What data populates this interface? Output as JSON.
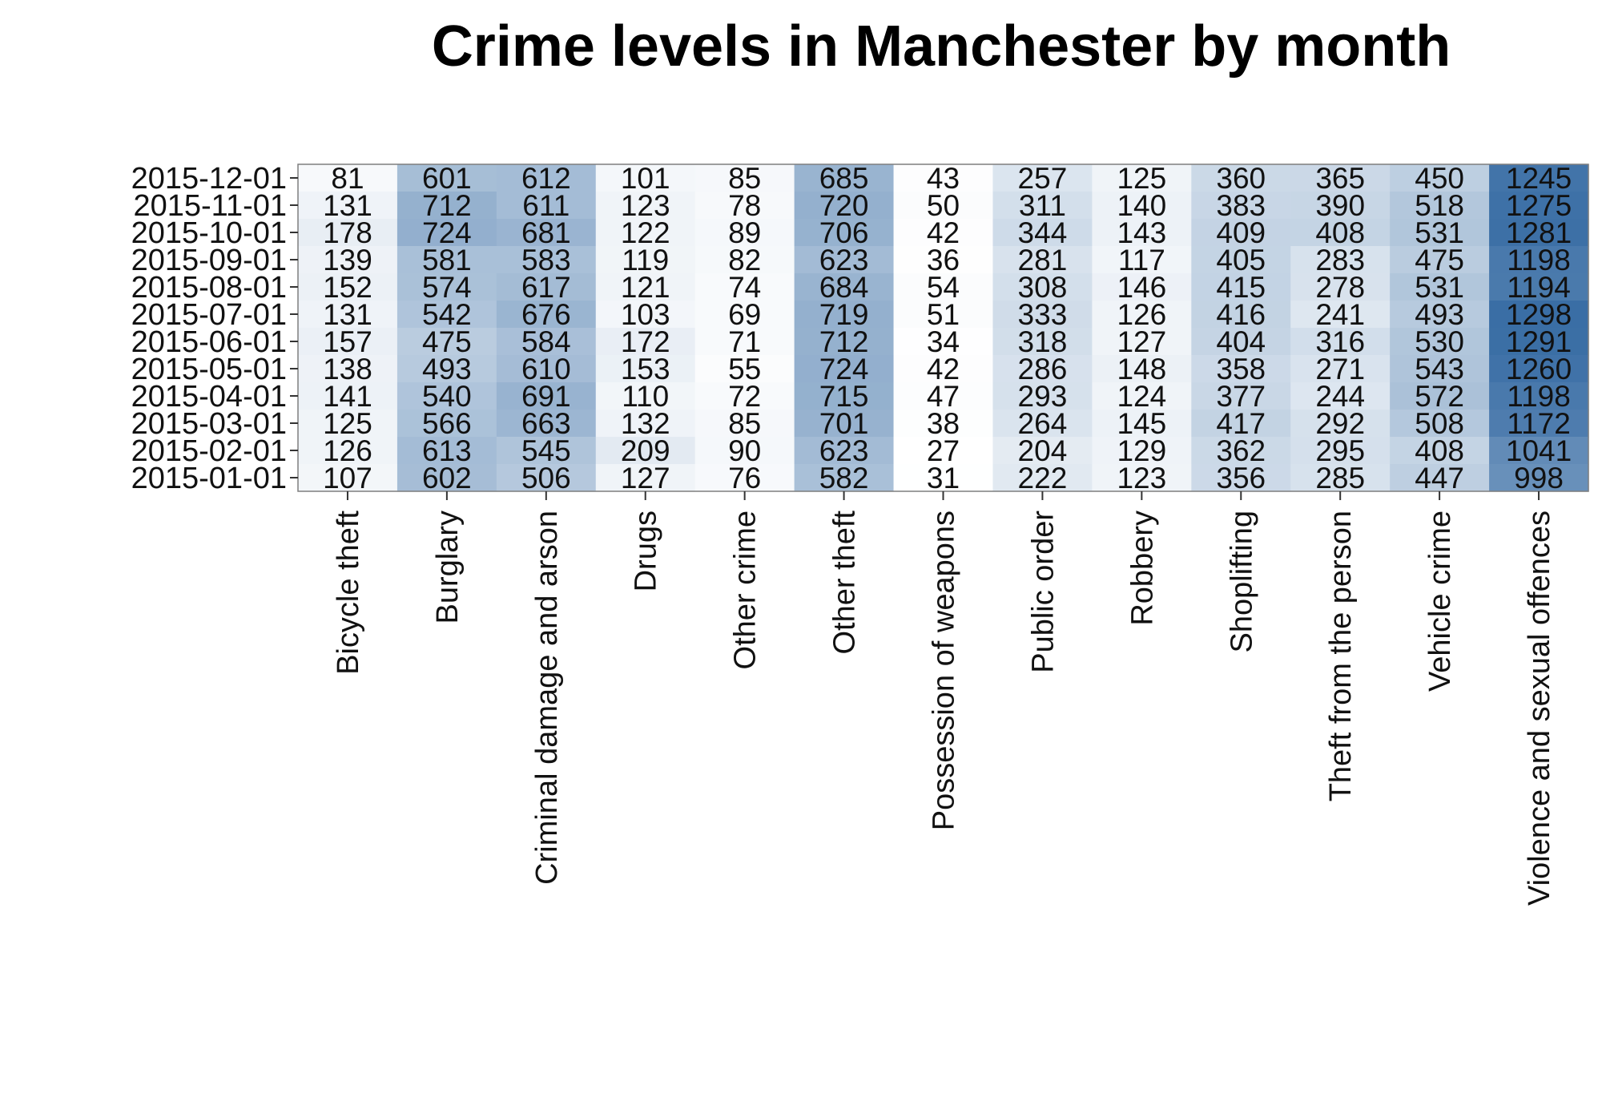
{
  "chart_data": {
    "type": "heatmap",
    "title": "Crime levels in Manchester by month",
    "xlabel": "",
    "ylabel": "",
    "x_categories": [
      "Bicycle theft",
      "Burglary",
      "Criminal damage and arson",
      "Drugs",
      "Other crime",
      "Other theft",
      "Possession of weapons",
      "Public order",
      "Robbery",
      "Shoplifting",
      "Theft from the person",
      "Vehicle crime",
      "Violence and sexual offences"
    ],
    "y_categories": [
      "2015-12-01",
      "2015-11-01",
      "2015-10-01",
      "2015-09-01",
      "2015-08-01",
      "2015-07-01",
      "2015-06-01",
      "2015-05-01",
      "2015-04-01",
      "2015-03-01",
      "2015-02-01",
      "2015-01-01"
    ],
    "values": [
      [
        81,
        601,
        612,
        101,
        85,
        685,
        43,
        257,
        125,
        360,
        365,
        450,
        1245
      ],
      [
        131,
        712,
        611,
        123,
        78,
        720,
        50,
        311,
        140,
        383,
        390,
        518,
        1275
      ],
      [
        178,
        724,
        681,
        122,
        89,
        706,
        42,
        344,
        143,
        409,
        408,
        531,
        1281
      ],
      [
        139,
        581,
        583,
        119,
        82,
        623,
        36,
        281,
        117,
        405,
        283,
        475,
        1198
      ],
      [
        152,
        574,
        617,
        121,
        74,
        684,
        54,
        308,
        146,
        415,
        278,
        531,
        1194
      ],
      [
        131,
        542,
        676,
        103,
        69,
        719,
        51,
        333,
        126,
        416,
        241,
        493,
        1298
      ],
      [
        157,
        475,
        584,
        172,
        71,
        712,
        34,
        318,
        127,
        404,
        316,
        530,
        1291
      ],
      [
        138,
        493,
        610,
        153,
        55,
        724,
        42,
        286,
        148,
        358,
        271,
        543,
        1260
      ],
      [
        141,
        540,
        691,
        110,
        72,
        715,
        47,
        293,
        124,
        377,
        244,
        572,
        1198
      ],
      [
        125,
        566,
        663,
        132,
        85,
        701,
        38,
        264,
        145,
        417,
        292,
        508,
        1172
      ],
      [
        126,
        613,
        545,
        209,
        90,
        623,
        27,
        204,
        129,
        362,
        295,
        408,
        1041
      ],
      [
        107,
        602,
        506,
        127,
        76,
        582,
        31,
        222,
        123,
        356,
        285,
        447,
        998
      ]
    ],
    "color_scale": {
      "low": "#ffffff",
      "high": "#3a6ea5"
    },
    "cell_labels": true,
    "legend": "none",
    "grid": false
  }
}
